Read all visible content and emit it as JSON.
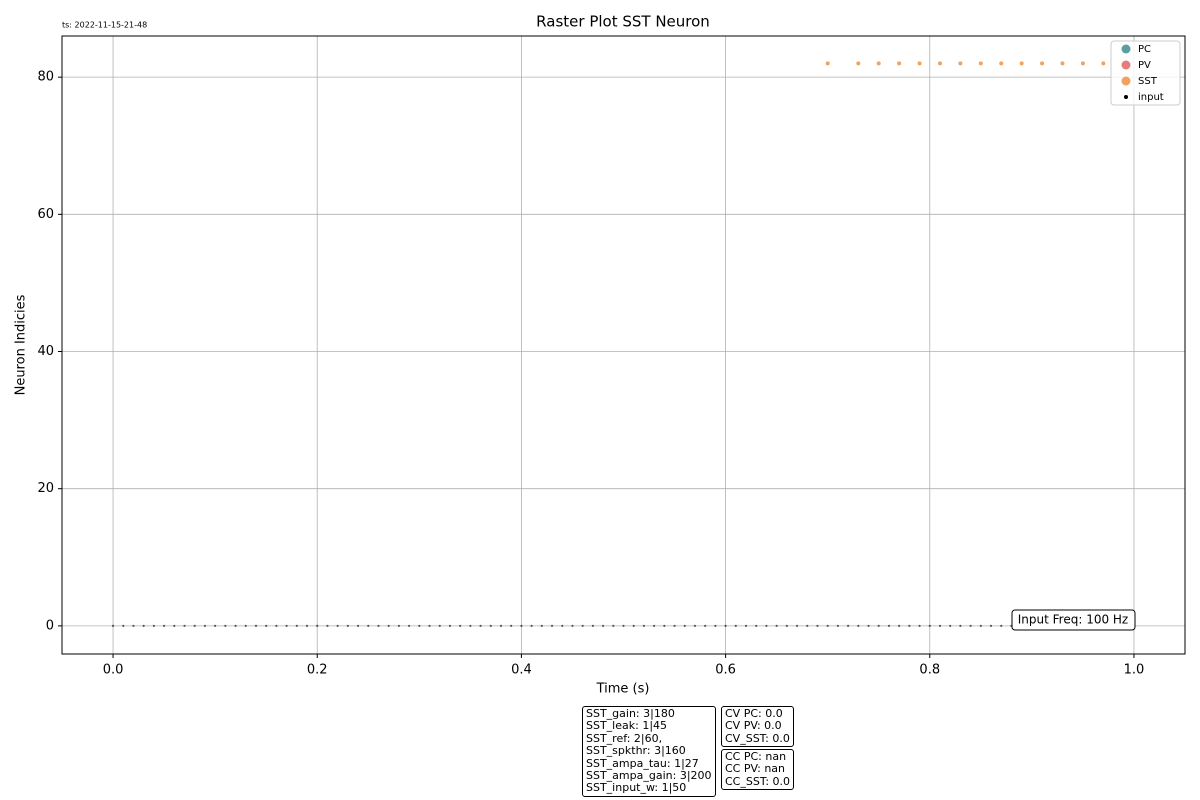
{
  "chart_data": {
    "type": "scatter",
    "title": "Raster Plot SST Neuron",
    "timestamp": "ts: 2022-11-15-21-48",
    "xlabel": "Time (s)",
    "ylabel": "Neuron Indicies",
    "xlim": [
      -0.05,
      1.05
    ],
    "ylim": [
      -4.1,
      86
    ],
    "xticks": [
      {
        "value": 0,
        "label": "0.0"
      },
      {
        "value": 0.2,
        "label": "0.2"
      },
      {
        "value": 0.4,
        "label": "0.4"
      },
      {
        "value": 0.6,
        "label": "0.6"
      },
      {
        "value": 0.8,
        "label": "0.8"
      },
      {
        "value": 1,
        "label": "1.0"
      }
    ],
    "yticks": [
      0,
      20,
      40,
      60,
      80
    ],
    "grid": true,
    "legend": "upper right",
    "series": [
      {
        "name": "PC",
        "color": "#5b9ea1",
        "x": [],
        "values": []
      },
      {
        "name": "PV",
        "color": "#e87b7b",
        "x": [],
        "values": []
      },
      {
        "name": "SST",
        "color": "#f0a25e",
        "x": [
          0.7,
          0.73,
          0.75,
          0.77,
          0.79,
          0.81,
          0.83,
          0.85,
          0.87,
          0.89,
          0.91,
          0.93,
          0.95,
          0.97
        ],
        "values": [
          82,
          82,
          82,
          82,
          82,
          82,
          82,
          82,
          82,
          82,
          82,
          82,
          82,
          82
        ]
      },
      {
        "name": "input",
        "color": "#000000",
        "x": [
          0,
          0.01,
          0.02,
          0.03,
          0.04,
          0.05,
          0.06,
          0.07,
          0.08,
          0.09,
          0.1,
          0.11,
          0.12,
          0.13,
          0.14,
          0.15,
          0.16,
          0.17,
          0.18,
          0.19,
          0.2,
          0.21,
          0.22,
          0.23,
          0.24,
          0.25,
          0.26,
          0.27,
          0.28,
          0.29,
          0.3,
          0.31,
          0.32,
          0.33,
          0.34,
          0.35,
          0.36,
          0.37,
          0.38,
          0.39,
          0.4,
          0.41,
          0.42,
          0.43,
          0.44,
          0.45,
          0.46,
          0.47,
          0.48,
          0.49,
          0.5,
          0.51,
          0.52,
          0.53,
          0.54,
          0.55,
          0.56,
          0.57,
          0.58,
          0.59,
          0.6,
          0.61,
          0.62,
          0.63,
          0.64,
          0.65,
          0.66,
          0.67,
          0.68,
          0.69,
          0.7,
          0.71,
          0.72,
          0.73,
          0.74,
          0.75,
          0.76,
          0.77,
          0.78,
          0.79,
          0.8,
          0.81,
          0.82,
          0.83,
          0.84,
          0.85,
          0.86,
          0.87,
          0.88,
          0.89,
          0.9,
          0.91,
          0.92,
          0.93,
          0.94,
          0.95,
          0.96,
          0.97,
          0.98,
          0.99
        ],
        "values": [
          0,
          0,
          0,
          0,
          0,
          0,
          0,
          0,
          0,
          0,
          0,
          0,
          0,
          0,
          0,
          0,
          0,
          0,
          0,
          0,
          0,
          0,
          0,
          0,
          0,
          0,
          0,
          0,
          0,
          0,
          0,
          0,
          0,
          0,
          0,
          0,
          0,
          0,
          0,
          0,
          0,
          0,
          0,
          0,
          0,
          0,
          0,
          0,
          0,
          0,
          0,
          0,
          0,
          0,
          0,
          0,
          0,
          0,
          0,
          0,
          0,
          0,
          0,
          0,
          0,
          0,
          0,
          0,
          0,
          0,
          0,
          0,
          0,
          0,
          0,
          0,
          0,
          0,
          0,
          0,
          0,
          0,
          0,
          0,
          0,
          0,
          0,
          0,
          0,
          0,
          0,
          0,
          0,
          0,
          0,
          0,
          0,
          0,
          0,
          0
        ]
      }
    ],
    "annotation": "Input Freq: 100 Hz",
    "param_box": [
      "SST_gain: 3|180",
      "SST_leak: 1|45",
      "SST_ref: 2|60,",
      "SST_spkthr: 3|160",
      "SST_ampa_tau: 1|27",
      "SST_ampa_gain: 3|200",
      "SST_input_w: 1|50"
    ],
    "cv_box": [
      "CV PC: 0.0",
      "CV PV: 0.0",
      "CV_SST: 0.0"
    ],
    "cc_box": [
      "CC PC: nan",
      "CC PV: nan",
      "CC_SST: 0.0"
    ]
  }
}
